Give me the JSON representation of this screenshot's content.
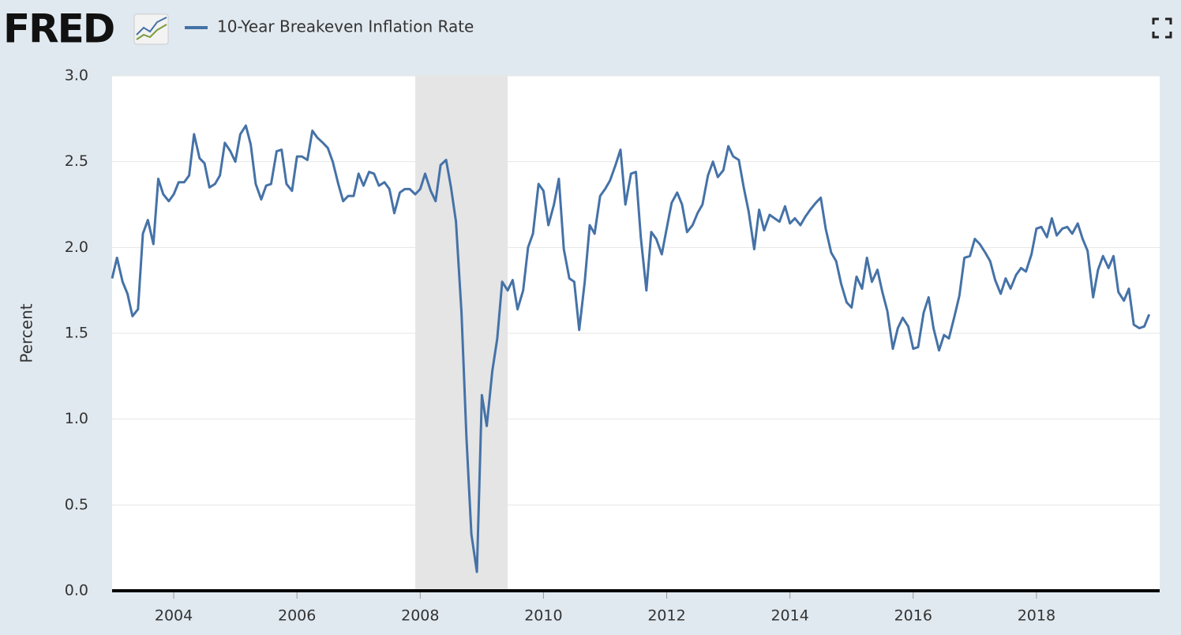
{
  "logo": "FRED",
  "chart_data": {
    "type": "line",
    "y_label": "Percent",
    "x": [
      2003.0,
      2003.08,
      2003.17,
      2003.25,
      2003.33,
      2003.42,
      2003.5,
      2003.58,
      2003.67,
      2003.75,
      2003.83,
      2003.92,
      2004.0,
      2004.08,
      2004.17,
      2004.25,
      2004.33,
      2004.42,
      2004.5,
      2004.58,
      2004.67,
      2004.75,
      2004.83,
      2004.92,
      2005.0,
      2005.08,
      2005.17,
      2005.25,
      2005.33,
      2005.42,
      2005.5,
      2005.58,
      2005.67,
      2005.75,
      2005.83,
      2005.92,
      2006.0,
      2006.08,
      2006.17,
      2006.25,
      2006.33,
      2006.42,
      2006.5,
      2006.58,
      2006.67,
      2006.75,
      2006.83,
      2006.92,
      2007.0,
      2007.08,
      2007.17,
      2007.25,
      2007.33,
      2007.42,
      2007.5,
      2007.58,
      2007.67,
      2007.75,
      2007.83,
      2007.92,
      2008.0,
      2008.08,
      2008.17,
      2008.25,
      2008.33,
      2008.42,
      2008.5,
      2008.58,
      2008.67,
      2008.75,
      2008.83,
      2008.92,
      2009.0,
      2009.08,
      2009.17,
      2009.25,
      2009.33,
      2009.42,
      2009.5,
      2009.58,
      2009.67,
      2009.75,
      2009.83,
      2009.92,
      2010.0,
      2010.08,
      2010.17,
      2010.25,
      2010.33,
      2010.42,
      2010.5,
      2010.58,
      2010.67,
      2010.75,
      2010.83,
      2010.92,
      2011.0,
      2011.08,
      2011.17,
      2011.25,
      2011.33,
      2011.42,
      2011.5,
      2011.58,
      2011.67,
      2011.75,
      2011.83,
      2011.92,
      2012.0,
      2012.08,
      2012.17,
      2012.25,
      2012.33,
      2012.42,
      2012.5,
      2012.58,
      2012.67,
      2012.75,
      2012.83,
      2012.92,
      2013.0,
      2013.08,
      2013.17,
      2013.25,
      2013.33,
      2013.42,
      2013.5,
      2013.58,
      2013.67,
      2013.75,
      2013.83,
      2013.92,
      2014.0,
      2014.08,
      2014.17,
      2014.25,
      2014.33,
      2014.42,
      2014.5,
      2014.58,
      2014.67,
      2014.75,
      2014.83,
      2014.92,
      2015.0,
      2015.08,
      2015.17,
      2015.25,
      2015.33,
      2015.42,
      2015.5,
      2015.58,
      2015.67,
      2015.75,
      2015.83,
      2015.92,
      2016.0,
      2016.08,
      2016.17,
      2016.25,
      2016.33,
      2016.42,
      2016.5,
      2016.58,
      2016.67,
      2016.75,
      2016.83,
      2016.92,
      2017.0,
      2017.08,
      2017.17,
      2017.25,
      2017.33,
      2017.42,
      2017.5,
      2017.58,
      2017.67,
      2017.75,
      2017.83,
      2017.92,
      2018.0,
      2018.08,
      2018.17,
      2018.25,
      2018.33,
      2018.42,
      2018.5,
      2018.58,
      2018.67,
      2018.75,
      2018.83,
      2018.92,
      2019.0,
      2019.08,
      2019.17,
      2019.25,
      2019.33,
      2019.42,
      2019.5,
      2019.58,
      2019.67,
      2019.75,
      2019.83
    ],
    "series": [
      {
        "name": "10-Year Breakeven Inflation Rate",
        "color": "#4572a7",
        "values": [
          1.82,
          1.94,
          1.8,
          1.73,
          1.6,
          1.64,
          2.08,
          2.16,
          2.02,
          2.4,
          2.31,
          2.27,
          2.31,
          2.38,
          2.38,
          2.42,
          2.66,
          2.52,
          2.49,
          2.35,
          2.37,
          2.42,
          2.61,
          2.56,
          2.5,
          2.66,
          2.71,
          2.6,
          2.37,
          2.28,
          2.36,
          2.37,
          2.56,
          2.57,
          2.37,
          2.33,
          2.53,
          2.53,
          2.51,
          2.68,
          2.64,
          2.61,
          2.58,
          2.5,
          2.37,
          2.27,
          2.3,
          2.3,
          2.43,
          2.36,
          2.44,
          2.43,
          2.36,
          2.38,
          2.34,
          2.2,
          2.32,
          2.34,
          2.34,
          2.31,
          2.34,
          2.43,
          2.33,
          2.27,
          2.48,
          2.51,
          2.35,
          2.15,
          1.62,
          0.9,
          0.33,
          0.11,
          1.14,
          0.96,
          1.28,
          1.47,
          1.8,
          1.75,
          1.81,
          1.64,
          1.75,
          2.0,
          2.08,
          2.37,
          2.33,
          2.13,
          2.25,
          2.4,
          1.99,
          1.82,
          1.8,
          1.52,
          1.8,
          2.13,
          2.08,
          2.3,
          2.34,
          2.39,
          2.48,
          2.57,
          2.25,
          2.43,
          2.44,
          2.06,
          1.75,
          2.09,
          2.05,
          1.96,
          2.11,
          2.26,
          2.32,
          2.25,
          2.09,
          2.13,
          2.2,
          2.25,
          2.42,
          2.5,
          2.41,
          2.45,
          2.59,
          2.53,
          2.51,
          2.35,
          2.21,
          1.99,
          2.22,
          2.1,
          2.19,
          2.17,
          2.15,
          2.24,
          2.14,
          2.17,
          2.13,
          2.18,
          2.22,
          2.26,
          2.29,
          2.11,
          1.97,
          1.92,
          1.79,
          1.68,
          1.65,
          1.83,
          1.76,
          1.94,
          1.8,
          1.87,
          1.74,
          1.63,
          1.41,
          1.53,
          1.59,
          1.54,
          1.41,
          1.42,
          1.62,
          1.71,
          1.53,
          1.4,
          1.49,
          1.47,
          1.6,
          1.72,
          1.94,
          1.95,
          2.05,
          2.02,
          1.97,
          1.92,
          1.81,
          1.73,
          1.82,
          1.76,
          1.84,
          1.88,
          1.86,
          1.96,
          2.11,
          2.12,
          2.06,
          2.17,
          2.07,
          2.11,
          2.12,
          2.08,
          2.14,
          2.05,
          1.98,
          1.71,
          1.87,
          1.95,
          1.88,
          1.95,
          1.74,
          1.69,
          1.76,
          1.55,
          1.53,
          1.54,
          1.61
        ]
      }
    ],
    "recessions": [
      [
        2007.92,
        2009.42
      ]
    ],
    "xlim": [
      2003,
      2020
    ],
    "xticks": [
      2004,
      2006,
      2008,
      2010,
      2012,
      2014,
      2016,
      2018
    ],
    "ylim": [
      0,
      3
    ],
    "yticks": [
      {
        "value": 0,
        "label": "0.0"
      },
      0.5,
      {
        "value": 1,
        "label": "1.0"
      },
      1.5,
      {
        "value": 2,
        "label": "2.0"
      },
      2.5,
      {
        "value": 3,
        "label": "3.0"
      }
    ],
    "grid": true
  }
}
